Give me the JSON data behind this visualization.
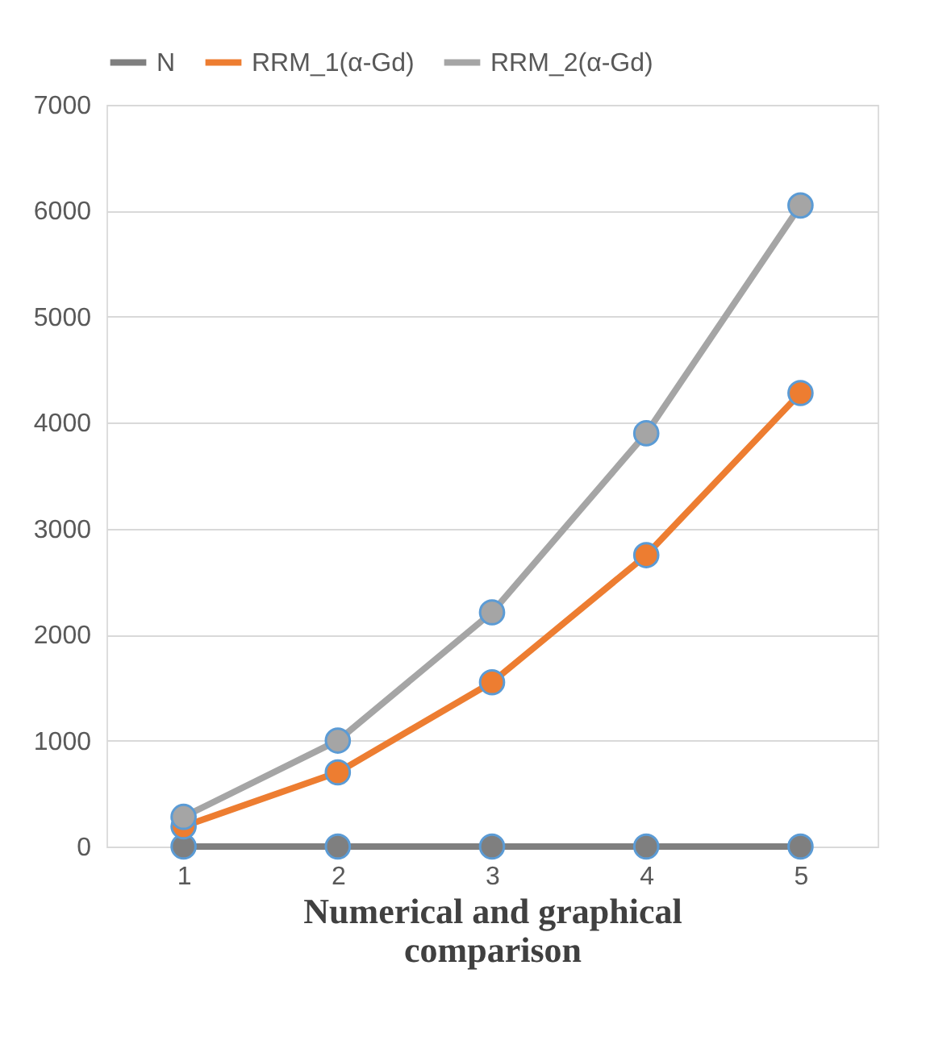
{
  "chart_data": {
    "type": "line",
    "xlabel": "Numerical and graphical comparison",
    "categories": [
      "1",
      "2",
      "3",
      "4",
      "5"
    ],
    "series": [
      {
        "name": "N",
        "color": "#7f7f7f",
        "values": [
          0,
          0,
          0,
          0,
          0
        ]
      },
      {
        "name": "RRM_1(α-Gd)",
        "color": "#ed7d31",
        "values": [
          190,
          700,
          1550,
          2750,
          4280
        ]
      },
      {
        "name": "RRM_2(α-Gd)",
        "color": "#a5a5a5",
        "values": [
          280,
          1000,
          2210,
          3900,
          6050
        ]
      }
    ],
    "ylim": [
      0,
      7000
    ],
    "yticks": [
      0,
      1000,
      2000,
      3000,
      4000,
      5000,
      6000,
      7000
    ],
    "grid": "y",
    "legend": "top",
    "marker": "circle",
    "line_style": "solid"
  }
}
